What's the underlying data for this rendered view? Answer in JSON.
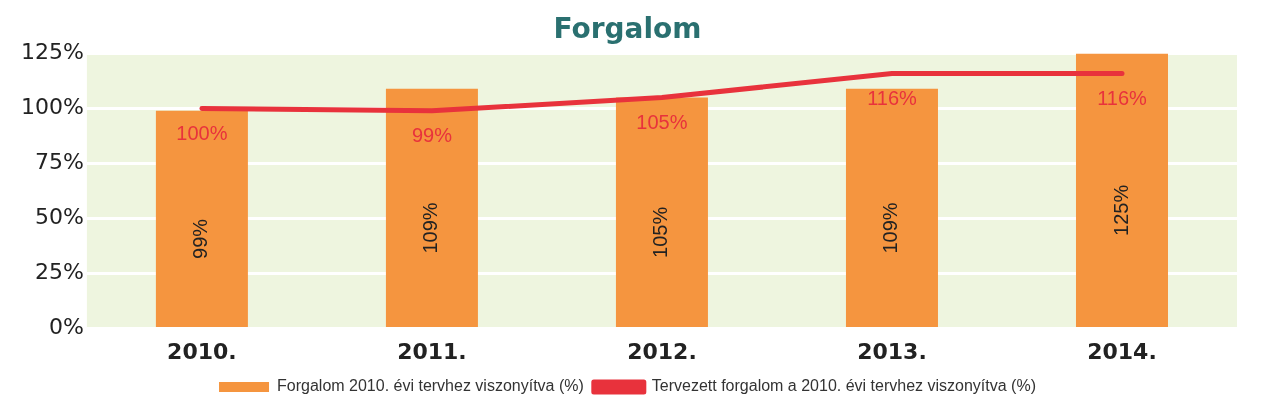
{
  "chart_data": {
    "type": "bar",
    "title": "Forgalom",
    "categories": [
      "2010.",
      "2011.",
      "2012.",
      "2013.",
      "2014."
    ],
    "series": [
      {
        "name": "Forgalom 2010. évi tervhez viszonyítva (%)",
        "color": "#f5953f",
        "values": [
          99,
          109,
          105,
          109,
          125
        ],
        "value_labels": [
          "99%",
          "109%",
          "105%",
          "109%",
          "125%"
        ]
      },
      {
        "name": "Tervezett forgalom a 2010. évi tervhez viszonyítva (%)",
        "type": "line",
        "color": "#e8323c",
        "values": [
          100,
          99,
          105,
          116,
          116
        ],
        "value_labels": [
          "100%",
          "99%",
          "105%",
          "116%",
          "116%"
        ]
      }
    ],
    "ylim": [
      0,
      125
    ],
    "yticks": [
      {
        "value": 0,
        "label": "0%"
      },
      {
        "value": 25,
        "label": "25%"
      },
      {
        "value": 50,
        "label": "50%"
      },
      {
        "value": 75,
        "label": "75%"
      },
      {
        "value": 100,
        "label": "100%"
      },
      {
        "value": 125,
        "label": "125%"
      }
    ],
    "grid": "y",
    "legend": "bottom",
    "marker": "none",
    "line_style": "solid"
  }
}
